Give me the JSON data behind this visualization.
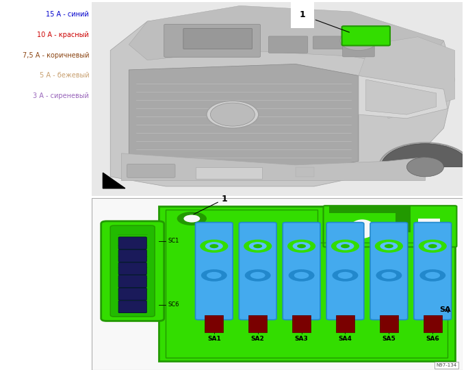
{
  "legend_items": [
    {
      "label": "15 А - синий",
      "color": "#0000CC"
    },
    {
      "label": "10 А - красный",
      "color": "#CC0000"
    },
    {
      "label": "7,5 А - коричневый",
      "color": "#8B4513"
    },
    {
      "label": "5 А - бежевый",
      "color": "#C8A070"
    },
    {
      "label": "3 А - сиреневый",
      "color": "#9966BB"
    }
  ],
  "bg_color": "#FFFFFF",
  "green_main": "#33DD00",
  "green_dark": "#229900",
  "green_mid": "#22BB00",
  "blue_fuse": "#44AAEE",
  "blue_fuse_dark": "#2288CC",
  "dark_navy": "#1A1A5A",
  "dark_red": "#7A0000",
  "border_color": "#AAAAAA",
  "panel_bg": "#F8F8F8",
  "car_light": "#D0D0D0",
  "car_dark": "#A0A0A0",
  "car_mid": "#B8B8B8",
  "sa_labels": [
    "SA1",
    "SA2",
    "SA3",
    "SA4",
    "SA5",
    "SA6"
  ],
  "sc1_label": "SC1",
  "sc6_label": "SC6",
  "sa_label": "SA",
  "label_1": "1",
  "watermark": "N97-134"
}
